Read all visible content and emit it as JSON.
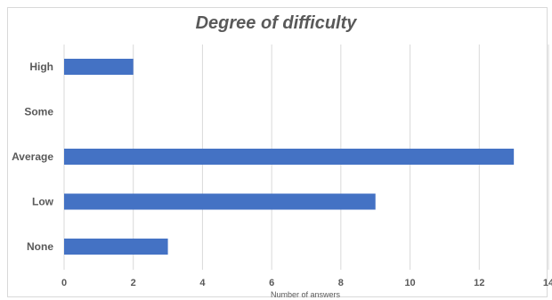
{
  "chart_data": {
    "type": "bar",
    "orientation": "horizontal",
    "title": "Degree of difficulty",
    "xlabel": "Number of answers",
    "ylabel": "",
    "categories": [
      "High",
      "Some",
      "Average",
      "Low",
      "None"
    ],
    "values": [
      2,
      0,
      13,
      9,
      3
    ],
    "xlim": [
      0,
      14
    ],
    "xticks": [
      "0",
      "2",
      "4",
      "6",
      "8",
      "10",
      "12",
      "14"
    ],
    "grid": "vertical",
    "legend": "none",
    "bar_color": "#4472c4",
    "grid_color": "#d9d9d9"
  }
}
